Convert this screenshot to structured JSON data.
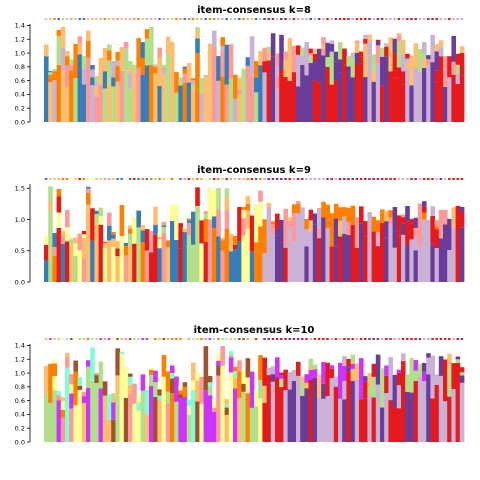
{
  "palette": [
    "#e41a1c",
    "#377eb8",
    "#b2df8a",
    "#fb9a99",
    "#ff7f00",
    "#6a3d9a",
    "#cab2d6",
    "#fdbf6f",
    "#ffff99",
    "#7fffd4",
    "#a0522d",
    "#cc33ff"
  ],
  "chart_data": [
    {
      "type": "bar",
      "title": "item-consensus k=8",
      "xlabel": "",
      "ylabel": "",
      "ylim": [
        0,
        1.45
      ],
      "yticks": [
        "0.0",
        "0.2",
        "0.4",
        "0.6",
        "0.8",
        "1.0",
        "1.2",
        "1.4"
      ],
      "grid": false,
      "legend": "none",
      "stacked": true,
      "n_items": 100
    },
    {
      "type": "bar",
      "title": "item-consensus k=9",
      "xlabel": "",
      "ylabel": "",
      "ylim": [
        0,
        1.6
      ],
      "yticks": [
        "0.0",
        "0.5",
        "1.0",
        "1.5"
      ],
      "grid": false,
      "legend": "none",
      "stacked": true,
      "n_items": 100
    },
    {
      "type": "bar",
      "title": "item-consensus k=10",
      "xlabel": "",
      "ylabel": "",
      "ylim": [
        0,
        1.45
      ],
      "yticks": [
        "0.0",
        "0.2",
        "0.4",
        "0.6",
        "0.8",
        "1.0",
        "1.2",
        "1.4"
      ],
      "grid": false,
      "legend": "none",
      "stacked": true,
      "n_items": 100
    }
  ]
}
